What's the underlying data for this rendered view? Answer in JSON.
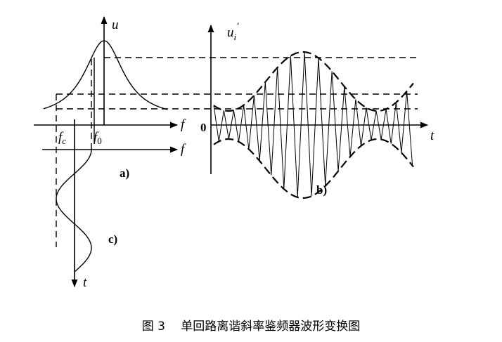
{
  "caption": "图 3　 单回路离谐斜率鉴频器波形变换图",
  "panels": {
    "a": {
      "label": "a)",
      "y_axis": "u",
      "x_axis": "f",
      "x_axis_2": "f",
      "mark_fc": "f",
      "mark_fc_sub": "c",
      "mark_f0": "f",
      "mark_f0_sub": "0"
    },
    "b": {
      "label": "b)",
      "y_axis": "u",
      "y_sub": "i",
      "y_prime": "′",
      "x_axis": "t",
      "origin": "0"
    },
    "c": {
      "label": "c)",
      "t_axis": "t"
    }
  }
}
